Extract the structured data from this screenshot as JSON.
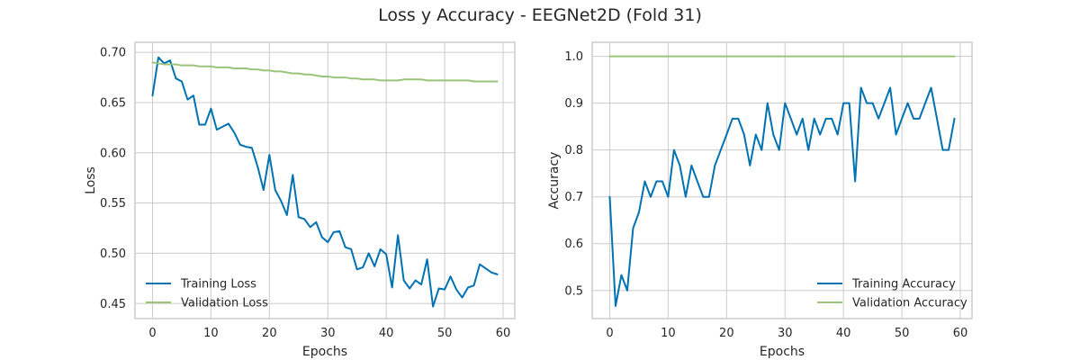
{
  "figure_title": "Loss y Accuracy - EEGNet2D (Fold 31)",
  "colors": {
    "training": "#0072b2",
    "validation": "#99c47a",
    "grid": "#cccccc",
    "frame": "#cccccc"
  },
  "chart_data": [
    {
      "type": "line",
      "xlabel": "Epochs",
      "ylabel": "Loss",
      "xlim": [
        -3,
        62
      ],
      "ylim": [
        0.435,
        0.71
      ],
      "xticks": [
        0,
        10,
        20,
        30,
        40,
        50,
        60
      ],
      "yticks": [
        0.45,
        0.5,
        0.55,
        0.6,
        0.65,
        0.7
      ],
      "ytick_labels": [
        "0.45",
        "0.50",
        "0.55",
        "0.60",
        "0.65",
        "0.70"
      ],
      "grid": true,
      "legend_position": "lower-left",
      "x": [
        0,
        1,
        2,
        3,
        4,
        5,
        6,
        7,
        8,
        9,
        10,
        11,
        12,
        13,
        14,
        15,
        16,
        17,
        18,
        19,
        20,
        21,
        22,
        23,
        24,
        25,
        26,
        27,
        28,
        29,
        30,
        31,
        32,
        33,
        34,
        35,
        36,
        37,
        38,
        39,
        40,
        41,
        42,
        43,
        44,
        45,
        46,
        47,
        48,
        49,
        50,
        51,
        52,
        53,
        54,
        55,
        56,
        57,
        58,
        59
      ],
      "series": [
        {
          "name": "Training Loss",
          "color": "#0072b2",
          "values": [
            0.657,
            0.695,
            0.689,
            0.692,
            0.674,
            0.671,
            0.653,
            0.657,
            0.628,
            0.628,
            0.644,
            0.623,
            0.626,
            0.629,
            0.62,
            0.608,
            0.606,
            0.605,
            0.586,
            0.563,
            0.598,
            0.563,
            0.552,
            0.538,
            0.578,
            0.536,
            0.534,
            0.526,
            0.531,
            0.516,
            0.511,
            0.521,
            0.522,
            0.506,
            0.504,
            0.484,
            0.486,
            0.5,
            0.487,
            0.504,
            0.499,
            0.466,
            0.518,
            0.473,
            0.465,
            0.473,
            0.469,
            0.494,
            0.447,
            0.465,
            0.464,
            0.477,
            0.464,
            0.456,
            0.466,
            0.468,
            0.489,
            0.485,
            0.481,
            0.479
          ]
        },
        {
          "name": "Validation Loss",
          "color": "#99c47a",
          "values": [
            0.69,
            0.689,
            0.688,
            0.688,
            0.688,
            0.687,
            0.687,
            0.687,
            0.686,
            0.686,
            0.686,
            0.685,
            0.685,
            0.685,
            0.684,
            0.684,
            0.684,
            0.683,
            0.683,
            0.682,
            0.682,
            0.681,
            0.681,
            0.68,
            0.679,
            0.679,
            0.678,
            0.678,
            0.677,
            0.676,
            0.676,
            0.675,
            0.675,
            0.675,
            0.674,
            0.674,
            0.673,
            0.673,
            0.673,
            0.672,
            0.672,
            0.672,
            0.672,
            0.673,
            0.673,
            0.673,
            0.673,
            0.672,
            0.672,
            0.672,
            0.672,
            0.672,
            0.672,
            0.672,
            0.672,
            0.671,
            0.671,
            0.671,
            0.671,
            0.671
          ]
        }
      ]
    },
    {
      "type": "line",
      "xlabel": "Epochs",
      "ylabel": "Accuracy",
      "xlim": [
        -3,
        62
      ],
      "ylim": [
        0.44,
        1.03
      ],
      "xticks": [
        0,
        10,
        20,
        30,
        40,
        50,
        60
      ],
      "yticks": [
        0.5,
        0.6,
        0.7,
        0.8,
        0.9,
        1.0
      ],
      "ytick_labels": [
        "0.5",
        "0.6",
        "0.7",
        "0.8",
        "0.9",
        "1.0"
      ],
      "grid": true,
      "legend_position": "lower-right",
      "x": [
        0,
        1,
        2,
        3,
        4,
        5,
        6,
        7,
        8,
        9,
        10,
        11,
        12,
        13,
        14,
        15,
        16,
        17,
        18,
        19,
        20,
        21,
        22,
        23,
        24,
        25,
        26,
        27,
        28,
        29,
        30,
        31,
        32,
        33,
        34,
        35,
        36,
        37,
        38,
        39,
        40,
        41,
        42,
        43,
        44,
        45,
        46,
        47,
        48,
        49,
        50,
        51,
        52,
        53,
        54,
        55,
        56,
        57,
        58,
        59
      ],
      "series": [
        {
          "name": "Training Accuracy",
          "color": "#0072b2",
          "values": [
            0.7,
            0.467,
            0.533,
            0.5,
            0.633,
            0.667,
            0.733,
            0.7,
            0.733,
            0.733,
            0.7,
            0.8,
            0.767,
            0.7,
            0.767,
            0.733,
            0.7,
            0.7,
            0.767,
            0.8,
            0.833,
            0.867,
            0.867,
            0.833,
            0.767,
            0.833,
            0.8,
            0.9,
            0.833,
            0.8,
            0.9,
            0.867,
            0.833,
            0.867,
            0.8,
            0.867,
            0.833,
            0.867,
            0.867,
            0.833,
            0.9,
            0.9,
            0.733,
            0.933,
            0.9,
            0.9,
            0.867,
            0.9,
            0.933,
            0.833,
            0.867,
            0.9,
            0.867,
            0.867,
            0.9,
            0.933,
            0.867,
            0.8,
            0.8,
            0.867
          ]
        },
        {
          "name": "Validation Accuracy",
          "color": "#99c47a",
          "values": [
            1.0,
            1.0,
            1.0,
            1.0,
            1.0,
            1.0,
            1.0,
            1.0,
            1.0,
            1.0,
            1.0,
            1.0,
            1.0,
            1.0,
            1.0,
            1.0,
            1.0,
            1.0,
            1.0,
            1.0,
            1.0,
            1.0,
            1.0,
            1.0,
            1.0,
            1.0,
            1.0,
            1.0,
            1.0,
            1.0,
            1.0,
            1.0,
            1.0,
            1.0,
            1.0,
            1.0,
            1.0,
            1.0,
            1.0,
            1.0,
            1.0,
            1.0,
            1.0,
            1.0,
            1.0,
            1.0,
            1.0,
            1.0,
            1.0,
            1.0,
            1.0,
            1.0,
            1.0,
            1.0,
            1.0,
            1.0,
            1.0,
            1.0,
            1.0,
            1.0
          ]
        }
      ]
    }
  ]
}
